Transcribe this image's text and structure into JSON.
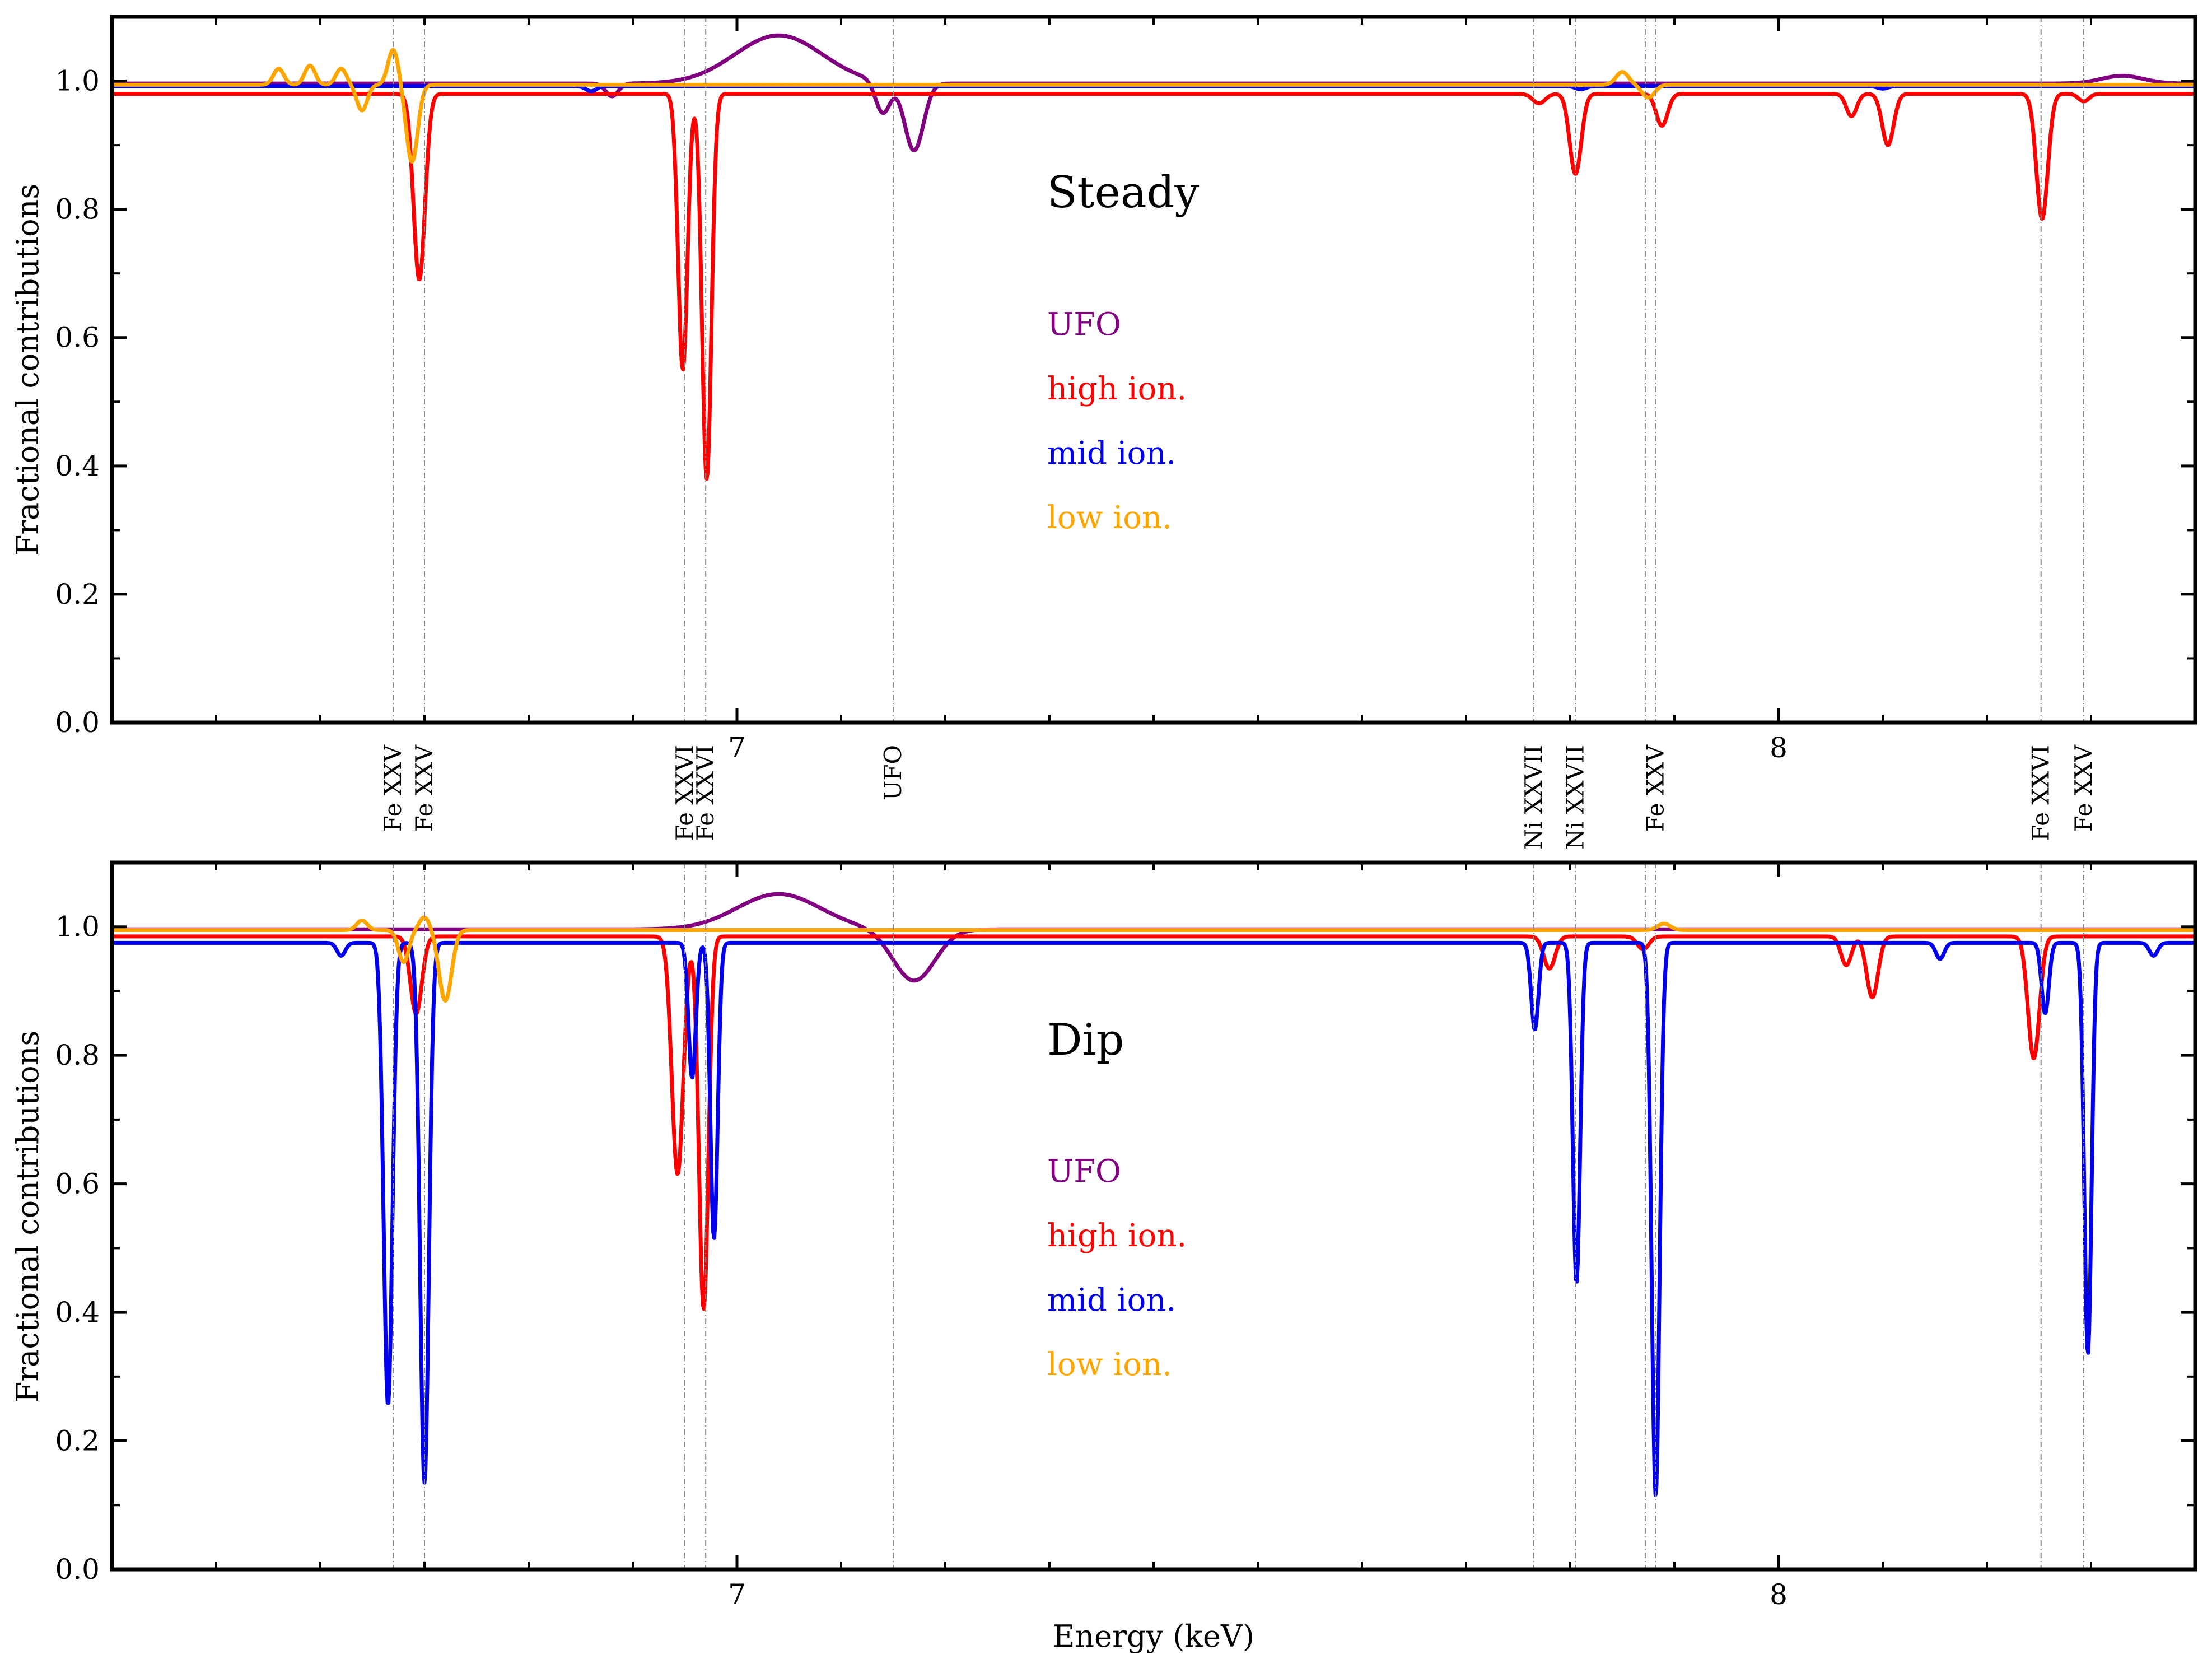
{
  "figure": {
    "xlabel": "Energy (keV)",
    "ylabel": "Fractional contributions"
  },
  "chart_data": [
    {
      "type": "line",
      "title": "Steady",
      "xlabel": "",
      "ylabel": "Fractional contributions",
      "xlim": [
        6.4,
        8.4
      ],
      "ylim": [
        0.0,
        1.1
      ],
      "y_ticks": [
        0.0,
        0.2,
        0.4,
        0.6,
        0.8,
        1.0
      ],
      "y_tick_labels": [
        "0.0",
        "0.2",
        "0.4",
        "0.6",
        "0.8",
        "1.0"
      ],
      "x_ticks": [
        7,
        8
      ],
      "x_tick_labels": [
        "7",
        "8"
      ],
      "legend": [
        "UFO",
        "high ion.",
        "mid ion.",
        "low ion."
      ],
      "lines": [
        {
          "energy": 6.67,
          "label": "Fe XXV"
        },
        {
          "energy": 6.7,
          "label": "Fe XXV"
        },
        {
          "energy": 6.95,
          "label": "Fe XXVI"
        },
        {
          "energy": 6.97,
          "label": "Fe XXVI"
        },
        {
          "energy": 7.15,
          "label": "UFO"
        },
        {
          "energy": 7.765,
          "label": "Ni XXVII"
        },
        {
          "energy": 7.805,
          "label": "Ni XXVII"
        },
        {
          "energy": 7.872,
          "label": ""
        },
        {
          "energy": 7.882,
          "label": "Fe XXV"
        },
        {
          "energy": 8.252,
          "label": "Fe XXVI"
        },
        {
          "energy": 8.293,
          "label": "Fe XXV"
        }
      ],
      "series": [
        {
          "name": "UFO",
          "color": "#800080",
          "baseline": 0.996,
          "features": [
            [
              7.04,
              0.075,
              0.042
            ],
            [
              7.14,
              -0.05,
              0.007
            ],
            [
              7.17,
              -0.105,
              0.009
            ],
            [
              6.88,
              -0.02,
              0.006
            ],
            [
              8.33,
              0.012,
              0.02
            ]
          ]
        },
        {
          "name": "high ion.",
          "color": "#ff0000",
          "baseline": 0.98,
          "features": [
            [
              6.695,
              -0.29,
              0.0055
            ],
            [
              6.948,
              -0.43,
              0.0045
            ],
            [
              6.971,
              -0.6,
              0.0045
            ],
            [
              7.77,
              -0.015,
              0.006
            ],
            [
              7.805,
              -0.125,
              0.0055
            ],
            [
              7.888,
              -0.05,
              0.0055
            ],
            [
              8.07,
              -0.035,
              0.005
            ],
            [
              8.105,
              -0.08,
              0.0055
            ],
            [
              8.253,
              -0.195,
              0.0055
            ],
            [
              8.293,
              -0.012,
              0.005
            ]
          ]
        },
        {
          "name": "mid ion.",
          "color": "#0000ee",
          "baseline": 0.992,
          "features": [
            [
              6.86,
              -0.008,
              0.005
            ],
            [
              7.81,
              -0.005,
              0.005
            ],
            [
              8.1,
              -0.004,
              0.005
            ]
          ]
        },
        {
          "name": "low ion.",
          "color": "#ffa500",
          "baseline": 0.994,
          "features": [
            [
              6.56,
              0.025,
              0.005
            ],
            [
              6.59,
              0.03,
              0.005
            ],
            [
              6.62,
              0.025,
              0.005
            ],
            [
              6.64,
              -0.04,
              0.005
            ],
            [
              6.67,
              0.055,
              0.005
            ],
            [
              6.688,
              -0.12,
              0.0055
            ],
            [
              7.85,
              0.02,
              0.006
            ],
            [
              7.875,
              -0.02,
              0.006
            ]
          ]
        }
      ]
    },
    {
      "type": "line",
      "title": "Dip",
      "xlabel": "Energy (keV)",
      "ylabel": "Fractional contributions",
      "xlim": [
        6.4,
        8.4
      ],
      "ylim": [
        0.0,
        1.1
      ],
      "y_ticks": [
        0.0,
        0.2,
        0.4,
        0.6,
        0.8,
        1.0
      ],
      "y_tick_labels": [
        "0.0",
        "0.2",
        "0.4",
        "0.6",
        "0.8",
        "1.0"
      ],
      "x_ticks": [
        7,
        8
      ],
      "x_tick_labels": [
        "7",
        "8"
      ],
      "legend": [
        "UFO",
        "high ion.",
        "mid ion.",
        "low ion."
      ],
      "lines": [
        {
          "energy": 6.67,
          "label": ""
        },
        {
          "energy": 6.7,
          "label": ""
        },
        {
          "energy": 6.95,
          "label": ""
        },
        {
          "energy": 6.97,
          "label": ""
        },
        {
          "energy": 7.15,
          "label": ""
        },
        {
          "energy": 7.765,
          "label": ""
        },
        {
          "energy": 7.805,
          "label": ""
        },
        {
          "energy": 7.872,
          "label": ""
        },
        {
          "energy": 7.882,
          "label": ""
        },
        {
          "energy": 8.252,
          "label": ""
        },
        {
          "energy": 8.293,
          "label": ""
        }
      ],
      "series": [
        {
          "name": "UFO",
          "color": "#800080",
          "baseline": 0.996,
          "features": [
            [
              7.04,
              0.055,
              0.04
            ],
            [
              7.17,
              -0.08,
              0.02
            ]
          ]
        },
        {
          "name": "high ion.",
          "color": "#ff0000",
          "baseline": 0.985,
          "features": [
            [
              6.692,
              -0.12,
              0.0055
            ],
            [
              6.943,
              -0.37,
              0.0055
            ],
            [
              6.968,
              -0.58,
              0.0045
            ],
            [
              7.78,
              -0.05,
              0.0055
            ],
            [
              7.87,
              -0.02,
              0.0055
            ],
            [
              8.065,
              -0.045,
              0.005
            ],
            [
              8.09,
              -0.095,
              0.0055
            ],
            [
              8.245,
              -0.19,
              0.0055
            ]
          ]
        },
        {
          "name": "mid ion.",
          "color": "#0000ee",
          "baseline": 0.975,
          "features": [
            [
              6.665,
              -0.72,
              0.0042
            ],
            [
              6.7,
              -0.84,
              0.0042
            ],
            [
              6.957,
              -0.21,
              0.0035
            ],
            [
              6.978,
              -0.46,
              0.0035
            ],
            [
              7.766,
              -0.135,
              0.0035
            ],
            [
              7.806,
              -0.53,
              0.0035
            ],
            [
              7.882,
              -0.86,
              0.0038
            ],
            [
              8.256,
              -0.11,
              0.0035
            ],
            [
              8.297,
              -0.64,
              0.0035
            ],
            [
              6.62,
              -0.02,
              0.004
            ],
            [
              8.155,
              -0.025,
              0.004
            ],
            [
              8.36,
              -0.02,
              0.004
            ]
          ]
        },
        {
          "name": "low ion.",
          "color": "#ffa500",
          "baseline": 0.995,
          "features": [
            [
              6.64,
              0.015,
              0.005
            ],
            [
              6.68,
              -0.05,
              0.005
            ],
            [
              6.7,
              0.02,
              0.005
            ],
            [
              6.72,
              -0.11,
              0.006
            ],
            [
              7.89,
              0.01,
              0.006
            ]
          ]
        }
      ]
    }
  ]
}
